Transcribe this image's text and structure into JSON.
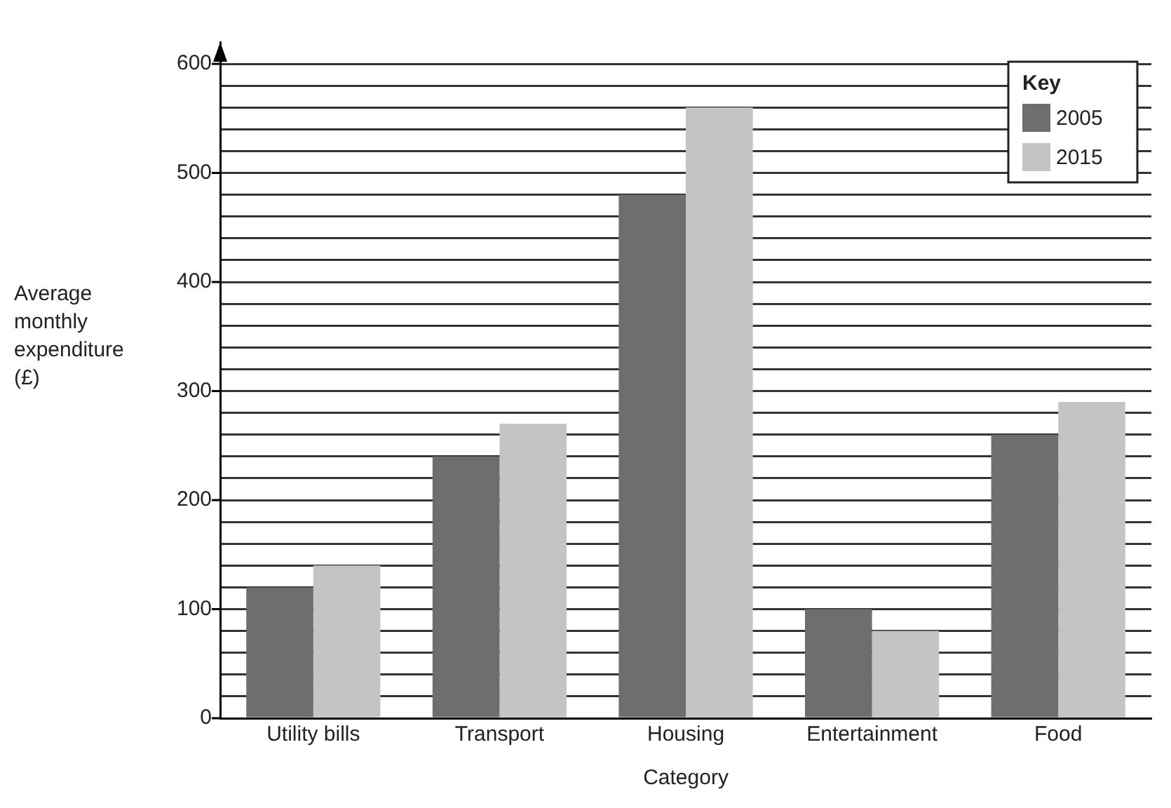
{
  "chart_data": {
    "type": "bar",
    "xlabel": "Category",
    "ylabel": "Average monthly expenditure (£)",
    "legend_title": "Key",
    "categories": [
      "Utility bills",
      "Transport",
      "Housing",
      "Entertainment",
      "Food"
    ],
    "series": [
      {
        "name": "2005",
        "color": "#6e6e6e",
        "values": [
          120,
          240,
          480,
          100,
          260
        ]
      },
      {
        "name": "2015",
        "color": "#c4c4c4",
        "values": [
          140,
          270,
          560,
          80,
          290
        ]
      }
    ],
    "ylim": [
      0,
      620
    ],
    "yticks": [
      0,
      {
        "value": 20,
        "label": null
      },
      {
        "value": 40,
        "label": null
      },
      {
        "value": 60,
        "label": null
      },
      {
        "value": 80,
        "label": null
      },
      100,
      {
        "value": 120,
        "label": null
      },
      {
        "value": 140,
        "label": null
      },
      {
        "value": 160,
        "label": null
      },
      {
        "value": 180,
        "label": null
      },
      200,
      {
        "value": 220,
        "label": null
      },
      {
        "value": 240,
        "label": null
      },
      {
        "value": 260,
        "label": null
      },
      {
        "value": 280,
        "label": null
      },
      300,
      {
        "value": 320,
        "label": null
      },
      {
        "value": 340,
        "label": null
      },
      {
        "value": 360,
        "label": null
      },
      {
        "value": 380,
        "label": null
      },
      400,
      {
        "value": 420,
        "label": null
      },
      {
        "value": 440,
        "label": null
      },
      {
        "value": 460,
        "label": null
      },
      {
        "value": 480,
        "label": null
      },
      500,
      {
        "value": 520,
        "label": null
      },
      {
        "value": 540,
        "label": null
      },
      {
        "value": 560,
        "label": null
      },
      {
        "value": 580,
        "label": null
      },
      600
    ],
    "grid": "y",
    "legend": "top right"
  }
}
